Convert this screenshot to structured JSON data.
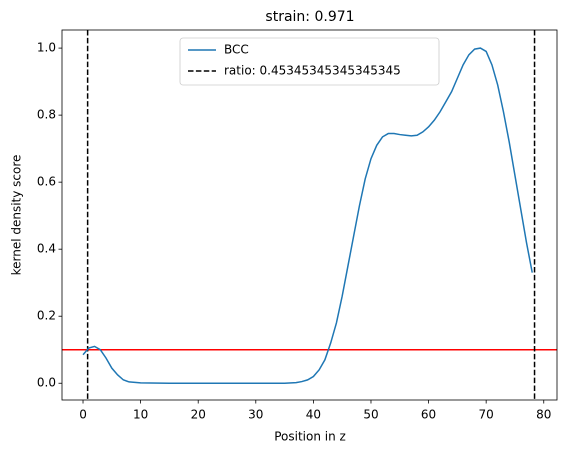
{
  "chart_data": {
    "type": "line",
    "title": "strain: 0.971",
    "xlabel": "Position in z",
    "ylabel": "kernel density score",
    "x": [
      0,
      1,
      2,
      3,
      4,
      5,
      6,
      7,
      8,
      10,
      15,
      20,
      25,
      30,
      35,
      37,
      38,
      39,
      40,
      41,
      42,
      43,
      44,
      45,
      46,
      47,
      48,
      49,
      50,
      51,
      52,
      53,
      54,
      55,
      56,
      57,
      58,
      59,
      60,
      61,
      62,
      63,
      64,
      65,
      66,
      67,
      68,
      69,
      70,
      71,
      72,
      73,
      74,
      75,
      76,
      77,
      78
    ],
    "series": [
      {
        "name": "BCC",
        "color": "#1f77b4",
        "values": [
          0.085,
          0.105,
          0.11,
          0.1,
          0.075,
          0.045,
          0.025,
          0.01,
          0.004,
          0.001,
          0,
          0,
          0,
          0,
          0,
          0.002,
          0.005,
          0.01,
          0.02,
          0.04,
          0.07,
          0.12,
          0.18,
          0.26,
          0.35,
          0.44,
          0.53,
          0.61,
          0.67,
          0.71,
          0.735,
          0.745,
          0.745,
          0.742,
          0.74,
          0.738,
          0.74,
          0.75,
          0.765,
          0.785,
          0.81,
          0.84,
          0.87,
          0.91,
          0.95,
          0.98,
          0.997,
          1.0,
          0.99,
          0.95,
          0.89,
          0.81,
          0.72,
          0.62,
          0.52,
          0.42,
          0.33
        ]
      }
    ],
    "vlines": {
      "name": "ratio: 0.45345345345345345",
      "color": "#000000",
      "dashed": true,
      "x": [
        0.8,
        78.4
      ]
    },
    "hline": {
      "y": 0.1,
      "color": "#ff0000"
    },
    "xlim": [
      -3.65,
      82.3
    ],
    "ylim": [
      -0.05,
      1.054
    ],
    "xticks": [
      0,
      10,
      20,
      30,
      40,
      50,
      60,
      70,
      80
    ],
    "yticks": [
      {
        "value": 0,
        "label": "0.0"
      },
      {
        "value": 0.2,
        "label": "0.2"
      },
      {
        "value": 0.4,
        "label": "0.4"
      },
      {
        "value": 0.6,
        "label": "0.6"
      },
      {
        "value": 0.8,
        "label": "0.8"
      },
      {
        "value": 1,
        "label": "1.0"
      }
    ],
    "legend_loc": "upper center"
  }
}
